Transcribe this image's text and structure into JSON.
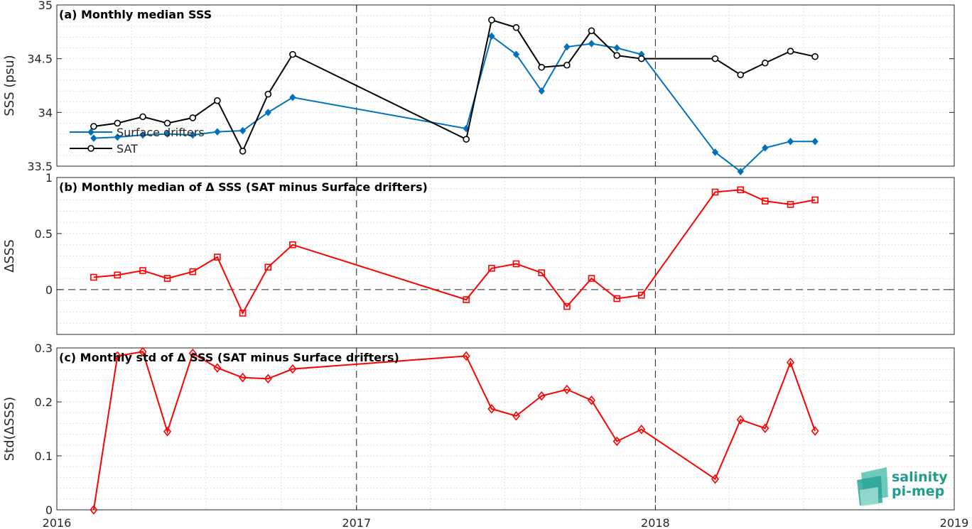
{
  "chart_data": [
    {
      "type": "line",
      "title": "(a) Monthly median SSS",
      "ylabel": "SSS (psu)",
      "xlim": [
        "2016-01-01",
        "2019-01-01"
      ],
      "ylim": [
        33.5,
        35
      ],
      "yticks": [
        33.5,
        34,
        34.5,
        35
      ],
      "ytick_labels": [
        "33.5",
        "34",
        "34.5",
        "35"
      ],
      "grid": true,
      "legend_position": "lower-left",
      "x": [
        "2016-02-15",
        "2016-03-15",
        "2016-04-15",
        "2016-05-15",
        "2016-06-15",
        "2016-07-15",
        "2016-08-15",
        "2016-09-15",
        "2016-10-15",
        "2017-05-15",
        "2017-06-15",
        "2017-07-15",
        "2017-08-15",
        "2017-09-15",
        "2017-10-15",
        "2017-11-15",
        "2017-12-15",
        "2018-03-15",
        "2018-04-15",
        "2018-05-15",
        "2018-06-15",
        "2018-07-15"
      ],
      "series": [
        {
          "name": "Surface drifters",
          "color": "#0072bd",
          "marker": "diamond-filled",
          "values": [
            33.76,
            33.77,
            33.79,
            33.8,
            33.79,
            33.82,
            33.83,
            34.0,
            34.14,
            33.85,
            34.71,
            34.54,
            34.2,
            34.61,
            34.64,
            34.6,
            34.54,
            33.63,
            33.45,
            33.67,
            33.73,
            33.73
          ]
        },
        {
          "name": "SAT",
          "color": "#000000",
          "marker": "circle-open",
          "values": [
            33.87,
            33.9,
            33.96,
            33.9,
            33.95,
            34.11,
            33.64,
            34.17,
            34.54,
            33.75,
            34.86,
            34.79,
            34.42,
            34.44,
            34.76,
            34.53,
            34.5,
            34.5,
            34.35,
            34.46,
            34.57,
            34.52
          ]
        }
      ]
    },
    {
      "type": "line",
      "title": "(b) Monthly median of Δ SSS (SAT minus Surface drifters)",
      "ylabel": "ΔSSS",
      "ylim": [
        -0.4,
        1
      ],
      "yticks": [
        0,
        0.5,
        1
      ],
      "ytick_labels": [
        "0",
        "0.5",
        "1"
      ],
      "zero_line": true,
      "grid": true,
      "x": [
        "2016-02-15",
        "2016-03-15",
        "2016-04-15",
        "2016-05-15",
        "2016-06-15",
        "2016-07-15",
        "2016-08-15",
        "2016-09-15",
        "2016-10-15",
        "2017-05-15",
        "2017-06-15",
        "2017-07-15",
        "2017-08-15",
        "2017-09-15",
        "2017-10-15",
        "2017-11-15",
        "2017-12-15",
        "2018-03-15",
        "2018-04-15",
        "2018-05-15",
        "2018-06-15",
        "2018-07-15"
      ],
      "series": [
        {
          "name": "",
          "color": "#ff0000",
          "marker": "square-open",
          "values": [
            0.11,
            0.13,
            0.17,
            0.1,
            0.16,
            0.29,
            -0.21,
            0.2,
            0.4,
            -0.09,
            0.19,
            0.23,
            0.15,
            -0.15,
            0.1,
            -0.08,
            -0.05,
            0.87,
            0.89,
            0.79,
            0.76,
            0.8
          ]
        }
      ]
    },
    {
      "type": "line",
      "title": "(c) Monthly std of Δ SSS (SAT minus Surface drifters)",
      "ylabel": "Std(ΔSSS)",
      "ylim": [
        0,
        0.3
      ],
      "yticks": [
        0,
        0.1,
        0.2,
        0.3
      ],
      "ytick_labels": [
        "0",
        "0.1",
        "0.2",
        "0.3"
      ],
      "xticks": [
        "2016-01-01",
        "2017-01-01",
        "2018-01-01",
        "2019-01-01"
      ],
      "xtick_labels": [
        "2016",
        "2017",
        "2018",
        "2019"
      ],
      "grid": true,
      "x": [
        "2016-02-15",
        "2016-03-15",
        "2016-04-15",
        "2016-05-15",
        "2016-06-15",
        "2016-07-15",
        "2016-08-15",
        "2016-09-15",
        "2016-10-15",
        "2017-05-15",
        "2017-06-15",
        "2017-07-15",
        "2017-08-15",
        "2017-09-15",
        "2017-10-15",
        "2017-11-15",
        "2017-12-15",
        "2018-03-15",
        "2018-04-15",
        "2018-05-15",
        "2018-06-15",
        "2018-07-15"
      ],
      "series": [
        {
          "name": "",
          "color": "#ff0000",
          "marker": "diamond-open",
          "values": [
            0.0,
            0.285,
            0.293,
            0.145,
            0.29,
            0.263,
            0.245,
            0.243,
            0.261,
            0.285,
            0.187,
            0.174,
            0.211,
            0.223,
            0.203,
            0.127,
            0.149,
            0.057,
            0.167,
            0.151,
            0.273,
            0.146
          ]
        }
      ]
    }
  ],
  "logo": {
    "line1": "salinity",
    "line2": "pi-mep",
    "color": "#1f9c8e"
  }
}
